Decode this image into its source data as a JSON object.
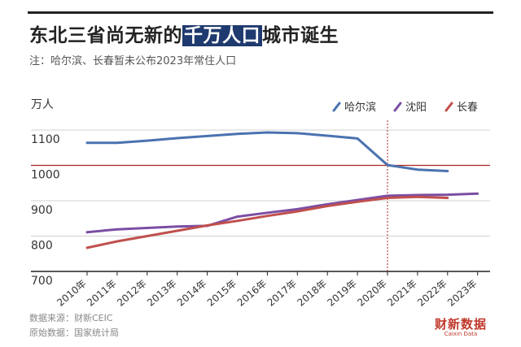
{
  "header": {
    "title_before": "东北三省尚无新的",
    "title_highlight": "千万人口",
    "title_after": "城市诞生",
    "subtitle": "注：哈尔滨、长春暂未公布2023年常住人口"
  },
  "footer": {
    "source": "数据来源：财新CEIC",
    "origin": "原始数据：国家统计局"
  },
  "logo": {
    "main": "财新数据",
    "sub": "Caixin Data"
  },
  "chart_data": {
    "type": "line",
    "ylabel": "万人",
    "ylim": [
      700,
      1130
    ],
    "yticks": [
      700,
      800,
      900,
      1000,
      1100
    ],
    "categories": [
      "2010年",
      "2011年",
      "2012年",
      "2013年",
      "2014年",
      "2015年",
      "2016年",
      "2017年",
      "2018年",
      "2019年",
      "2020年",
      "2021年",
      "2022年",
      "2023年"
    ],
    "reference_line": {
      "value": 1000,
      "color": "#b22222"
    },
    "divider_at": "2020年",
    "legend_position": "top-right",
    "grid": true,
    "series": [
      {
        "name": "哈尔滨",
        "color": "#4a72b0",
        "values": [
          1064,
          1064,
          1070,
          1077,
          1083,
          1089,
          1093,
          1091,
          1084,
          1076,
          1001,
          988,
          984,
          null
        ]
      },
      {
        "name": "沈阳",
        "color": "#7b4ea3",
        "values": [
          811,
          819,
          823,
          827,
          829,
          855,
          866,
          876,
          890,
          902,
          914,
          916,
          917,
          920
        ]
      },
      {
        "name": "长春",
        "color": "#c0504d",
        "values": [
          767,
          785,
          800,
          815,
          830,
          843,
          857,
          870,
          885,
          897,
          908,
          911,
          908,
          null
        ]
      }
    ]
  }
}
